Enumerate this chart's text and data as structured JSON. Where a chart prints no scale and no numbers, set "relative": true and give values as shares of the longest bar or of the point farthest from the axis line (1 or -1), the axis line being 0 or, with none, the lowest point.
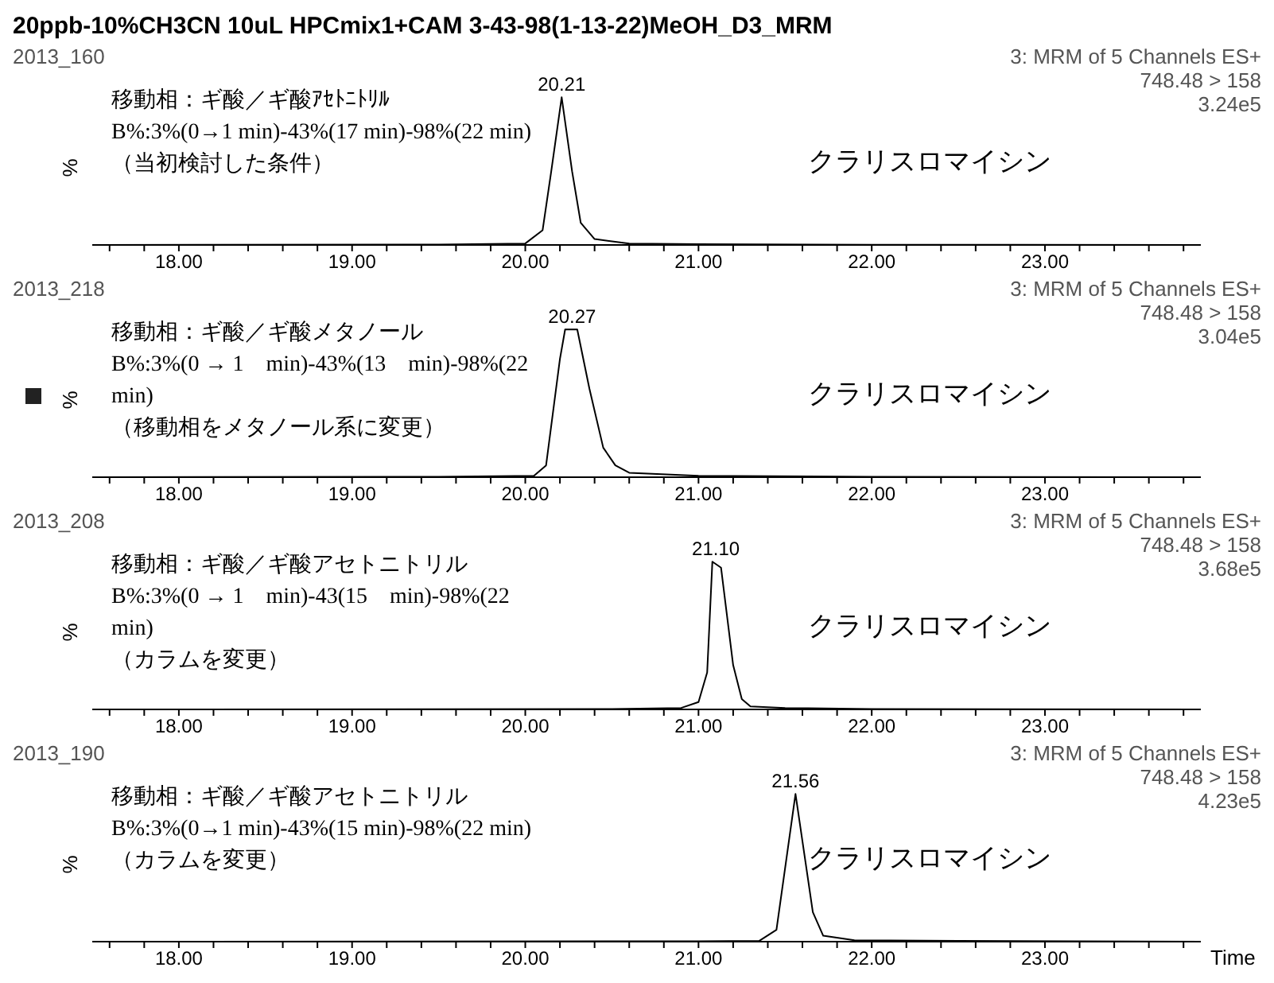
{
  "chart_data": [
    {
      "type": "line",
      "title": "20ppb-10%CH3CN 10uL HPCmix1+CAM 3-43-98(1-13-22)MeOH_D3_MRM",
      "subtitle": "2013_160",
      "ylabel": "%",
      "relative": true,
      "xlim": [
        17.5,
        23.9
      ],
      "xticks": [
        {
          "value": 17.6,
          "label": null
        },
        {
          "value": 17.8,
          "label": null
        },
        {
          "value": 18,
          "label": "18.00"
        },
        {
          "value": 18.2,
          "label": null
        },
        {
          "value": 18.4,
          "label": null
        },
        {
          "value": 18.6,
          "label": null
        },
        {
          "value": 18.8,
          "label": null
        },
        {
          "value": 19,
          "label": "19.00"
        },
        {
          "value": 19.2,
          "label": null
        },
        {
          "value": 19.4,
          "label": null
        },
        {
          "value": 19.6,
          "label": null
        },
        {
          "value": 19.8,
          "label": null
        },
        {
          "value": 20,
          "label": "20.00"
        },
        {
          "value": 20.2,
          "label": null
        },
        {
          "value": 20.4,
          "label": null
        },
        {
          "value": 20.6,
          "label": null
        },
        {
          "value": 20.8,
          "label": null
        },
        {
          "value": 21,
          "label": "21.00"
        },
        {
          "value": 21.2,
          "label": null
        },
        {
          "value": 21.4,
          "label": null
        },
        {
          "value": 21.6,
          "label": null
        },
        {
          "value": 21.8,
          "label": null
        },
        {
          "value": 22,
          "label": "22.00"
        },
        {
          "value": 22.2,
          "label": null
        },
        {
          "value": 22.4,
          "label": null
        },
        {
          "value": 22.6,
          "label": null
        },
        {
          "value": 22.8,
          "label": null
        },
        {
          "value": 23,
          "label": "23.00"
        },
        {
          "value": 23.2,
          "label": null
        },
        {
          "value": 23.4,
          "label": null
        },
        {
          "value": 23.6,
          "label": null
        },
        {
          "value": 23.8,
          "label": null
        }
      ],
      "x": [
        17.5,
        19.5,
        20.0,
        20.1,
        20.15,
        20.21,
        20.27,
        20.32,
        20.4,
        20.6,
        21.0,
        22.0,
        23.9
      ],
      "series": [
        {
          "color": "#000000",
          "values": [
            0,
            0.003,
            0.01,
            0.1,
            0.5,
            1,
            0.5,
            0.15,
            0.04,
            0.01,
            0.005,
            0.002,
            0
          ]
        }
      ],
      "annotations": [
        "3: MRM of 5 Channels ES+",
        "748.48 > 158",
        "3.24e5",
        "移動相：ギ酸／ギ酸ｱｾﾄﾆﾄﾘﾙ",
        "B%:3%(0→1 min)-43%(17 min)-98%(22 min)",
        "（当初検討した条件）",
        "クラリスロマイシン",
        {
          "text": "20.21",
          "x": 20.21,
          "y": 1
        }
      ]
    },
    {
      "type": "line",
      "subtitle": "2013_218",
      "ylabel": "%",
      "relative": true,
      "xlim": [
        17.5,
        23.9
      ],
      "xticks": [
        {
          "value": 17.6,
          "label": null
        },
        {
          "value": 17.8,
          "label": null
        },
        {
          "value": 18,
          "label": "18.00"
        },
        {
          "value": 18.2,
          "label": null
        },
        {
          "value": 18.4,
          "label": null
        },
        {
          "value": 18.6,
          "label": null
        },
        {
          "value": 18.8,
          "label": null
        },
        {
          "value": 19,
          "label": "19.00"
        },
        {
          "value": 19.2,
          "label": null
        },
        {
          "value": 19.4,
          "label": null
        },
        {
          "value": 19.6,
          "label": null
        },
        {
          "value": 19.8,
          "label": null
        },
        {
          "value": 20,
          "label": "20.00"
        },
        {
          "value": 20.2,
          "label": null
        },
        {
          "value": 20.4,
          "label": null
        },
        {
          "value": 20.6,
          "label": null
        },
        {
          "value": 20.8,
          "label": null
        },
        {
          "value": 21,
          "label": "21.00"
        },
        {
          "value": 21.2,
          "label": null
        },
        {
          "value": 21.4,
          "label": null
        },
        {
          "value": 21.6,
          "label": null
        },
        {
          "value": 21.8,
          "label": null
        },
        {
          "value": 22,
          "label": "22.00"
        },
        {
          "value": 22.2,
          "label": null
        },
        {
          "value": 22.4,
          "label": null
        },
        {
          "value": 22.6,
          "label": null
        },
        {
          "value": 22.8,
          "label": null
        },
        {
          "value": 23,
          "label": "23.00"
        },
        {
          "value": 23.2,
          "label": null
        },
        {
          "value": 23.4,
          "label": null
        },
        {
          "value": 23.6,
          "label": null
        },
        {
          "value": 23.8,
          "label": null
        }
      ],
      "x": [
        17.5,
        19.5,
        20.05,
        20.12,
        20.2,
        20.23,
        20.3,
        20.37,
        20.45,
        20.52,
        20.6,
        21.0,
        22.0,
        23.9
      ],
      "series": [
        {
          "color": "#000000",
          "values": [
            0,
            0.003,
            0.01,
            0.08,
            0.8,
            1,
            1,
            0.6,
            0.2,
            0.08,
            0.03,
            0.01,
            0.003,
            0
          ]
        }
      ],
      "annotations": [
        "3: MRM of 5 Channels ES+",
        "748.48 > 158",
        "3.04e5",
        "移動相：ギ酸／ギ酸メタノール",
        "B%:3%(0 → 1　min)-43%(13　min)-98%(22",
        "min)",
        "（移動相をメタノール系に変更）",
        "クラリスロマイシン",
        {
          "text": "20.27",
          "x": 20.27,
          "y": 1
        }
      ]
    },
    {
      "type": "line",
      "subtitle": "2013_208",
      "ylabel": "%",
      "relative": true,
      "xlim": [
        17.5,
        23.9
      ],
      "xticks": [
        {
          "value": 17.6,
          "label": null
        },
        {
          "value": 17.8,
          "label": null
        },
        {
          "value": 18,
          "label": "18.00"
        },
        {
          "value": 18.2,
          "label": null
        },
        {
          "value": 18.4,
          "label": null
        },
        {
          "value": 18.6,
          "label": null
        },
        {
          "value": 18.8,
          "label": null
        },
        {
          "value": 19,
          "label": "19.00"
        },
        {
          "value": 19.2,
          "label": null
        },
        {
          "value": 19.4,
          "label": null
        },
        {
          "value": 19.6,
          "label": null
        },
        {
          "value": 19.8,
          "label": null
        },
        {
          "value": 20,
          "label": "20.00"
        },
        {
          "value": 20.2,
          "label": null
        },
        {
          "value": 20.4,
          "label": null
        },
        {
          "value": 20.6,
          "label": null
        },
        {
          "value": 20.8,
          "label": null
        },
        {
          "value": 21,
          "label": "21.00"
        },
        {
          "value": 21.2,
          "label": null
        },
        {
          "value": 21.4,
          "label": null
        },
        {
          "value": 21.6,
          "label": null
        },
        {
          "value": 21.8,
          "label": null
        },
        {
          "value": 22,
          "label": "22.00"
        },
        {
          "value": 22.2,
          "label": null
        },
        {
          "value": 22.4,
          "label": null
        },
        {
          "value": 22.6,
          "label": null
        },
        {
          "value": 22.8,
          "label": null
        },
        {
          "value": 23,
          "label": "23.00"
        },
        {
          "value": 23.2,
          "label": null
        },
        {
          "value": 23.4,
          "label": null
        },
        {
          "value": 23.6,
          "label": null
        },
        {
          "value": 23.8,
          "label": null
        }
      ],
      "x": [
        17.5,
        20.5,
        20.9,
        21.0,
        21.05,
        21.08,
        21.13,
        21.2,
        21.25,
        21.3,
        21.5,
        22.0,
        23.9
      ],
      "series": [
        {
          "color": "#000000",
          "values": [
            0,
            0.003,
            0.01,
            0.05,
            0.25,
            1,
            0.96,
            0.3,
            0.07,
            0.02,
            0.01,
            0.003,
            0
          ]
        }
      ],
      "annotations": [
        "3: MRM of 5 Channels ES+",
        "748.48 > 158",
        "3.68e5",
        "移動相：ギ酸／ギ酸アセトニトリル",
        "B%:3%(0 → 1　min)-43(15　min)-98%(22",
        "min)",
        "（カラムを変更）",
        "クラリスロマイシン",
        {
          "text": "21.10",
          "x": 21.1,
          "y": 1
        }
      ]
    },
    {
      "type": "line",
      "subtitle": "2013_190",
      "xlabel": "Time",
      "ylabel": "%",
      "relative": true,
      "xlim": [
        17.5,
        23.9
      ],
      "xticks": [
        {
          "value": 17.6,
          "label": null
        },
        {
          "value": 17.8,
          "label": null
        },
        {
          "value": 18,
          "label": "18.00"
        },
        {
          "value": 18.2,
          "label": null
        },
        {
          "value": 18.4,
          "label": null
        },
        {
          "value": 18.6,
          "label": null
        },
        {
          "value": 18.8,
          "label": null
        },
        {
          "value": 19,
          "label": "19.00"
        },
        {
          "value": 19.2,
          "label": null
        },
        {
          "value": 19.4,
          "label": null
        },
        {
          "value": 19.6,
          "label": null
        },
        {
          "value": 19.8,
          "label": null
        },
        {
          "value": 20,
          "label": "20.00"
        },
        {
          "value": 20.2,
          "label": null
        },
        {
          "value": 20.4,
          "label": null
        },
        {
          "value": 20.6,
          "label": null
        },
        {
          "value": 20.8,
          "label": null
        },
        {
          "value": 21,
          "label": "21.00"
        },
        {
          "value": 21.2,
          "label": null
        },
        {
          "value": 21.4,
          "label": null
        },
        {
          "value": 21.6,
          "label": null
        },
        {
          "value": 21.8,
          "label": null
        },
        {
          "value": 22,
          "label": "22.00"
        },
        {
          "value": 22.2,
          "label": null
        },
        {
          "value": 22.4,
          "label": null
        },
        {
          "value": 22.6,
          "label": null
        },
        {
          "value": 22.8,
          "label": null
        },
        {
          "value": 23,
          "label": "23.00"
        },
        {
          "value": 23.2,
          "label": null
        },
        {
          "value": 23.4,
          "label": null
        },
        {
          "value": 23.6,
          "label": null
        },
        {
          "value": 23.8,
          "label": null
        }
      ],
      "x": [
        17.5,
        21.0,
        21.35,
        21.45,
        21.56,
        21.66,
        21.72,
        21.9,
        22.5,
        23.9
      ],
      "series": [
        {
          "color": "#000000",
          "values": [
            0,
            0.003,
            0.005,
            0.08,
            1,
            0.2,
            0.04,
            0.01,
            0.005,
            0
          ]
        }
      ],
      "annotations": [
        "3: MRM of 5 Channels ES+",
        "748.48 > 158",
        "4.23e5",
        "移動相：ギ酸／ギ酸アセトニトリル",
        "B%:3%(0→1 min)-43%(15 min)-98%(22 min)",
        "（カラムを変更）",
        "クラリスロマイシン",
        {
          "text": "21.56",
          "x": 21.56,
          "y": 1
        }
      ]
    }
  ]
}
